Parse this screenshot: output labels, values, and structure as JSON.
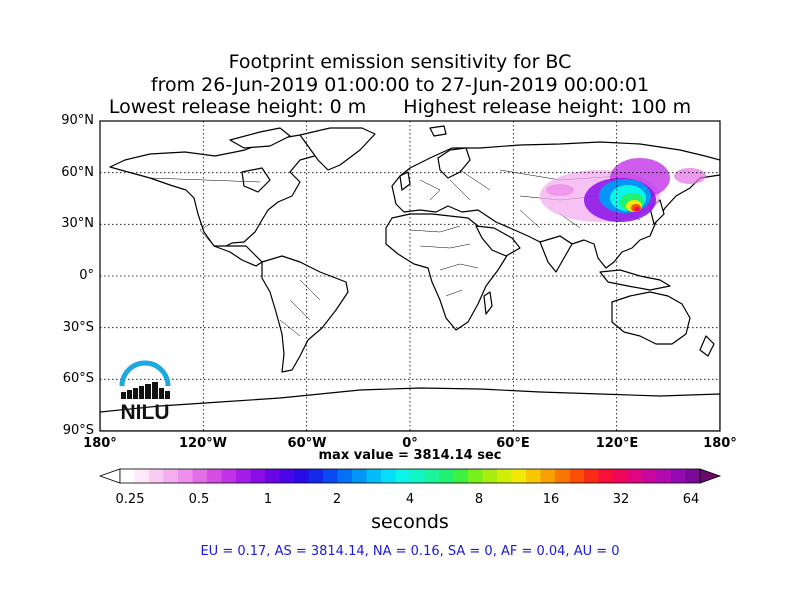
{
  "title": {
    "line1": "Footprint emission sensitivity for BC",
    "line2": "from 26-Jun-2019 01:00:00 to 27-Jun-2019 00:00:01",
    "line3_left": "Lowest release height: 0 m",
    "line3_right": "Highest release height: 100 m"
  },
  "map": {
    "lat_ticks": [
      "90°N",
      "60°N",
      "30°N",
      "0°",
      "30°S",
      "60°S",
      "90°S"
    ],
    "lon_ticks": [
      "180°",
      "120°W",
      "60°W",
      "0°",
      "60°E",
      "120°E",
      "180°"
    ],
    "lat_values": [
      90,
      60,
      30,
      0,
      -30,
      -60,
      -90
    ],
    "lon_values": [
      -180,
      -120,
      -60,
      0,
      60,
      120,
      180
    ],
    "grid": true,
    "hotspot_region": "East Asia"
  },
  "logo": {
    "text": "NILU",
    "ring_color": "#1ea8e0"
  },
  "max_value_text": "max value = 3814.14 sec",
  "colorbar": {
    "tick_labels": [
      "0.25",
      "0.5",
      "1",
      "2",
      "4",
      "8",
      "16",
      "32",
      "64"
    ],
    "units": "seconds",
    "colors": [
      "#ffffff",
      "#fde8fc",
      "#f8cbf5",
      "#f3aef0",
      "#ee8feb",
      "#e36fe7",
      "#d44ee6",
      "#c233e8",
      "#a51de8",
      "#8a0fe6",
      "#6a06e6",
      "#4b03e8",
      "#2a0ae6",
      "#1428ea",
      "#0a4af0",
      "#0670f4",
      "#0496f6",
      "#03bcf8",
      "#05def8",
      "#0af5e8",
      "#12f5c4",
      "#1af59c",
      "#22f070",
      "#40f040",
      "#78f01e",
      "#a8ee10",
      "#d0ee08",
      "#f0ea06",
      "#f8c805",
      "#f8a004",
      "#f87804",
      "#f84e06",
      "#f82c14",
      "#f81038",
      "#f0065c",
      "#e00680",
      "#c8089c",
      "#b00ab0",
      "#960ab4",
      "#7a0a96"
    ]
  },
  "region_summary": "EU = 0.17,  AS = 3814.14,  NA = 0.16,  SA = 0,  AF = 0.04,  AU = 0"
}
